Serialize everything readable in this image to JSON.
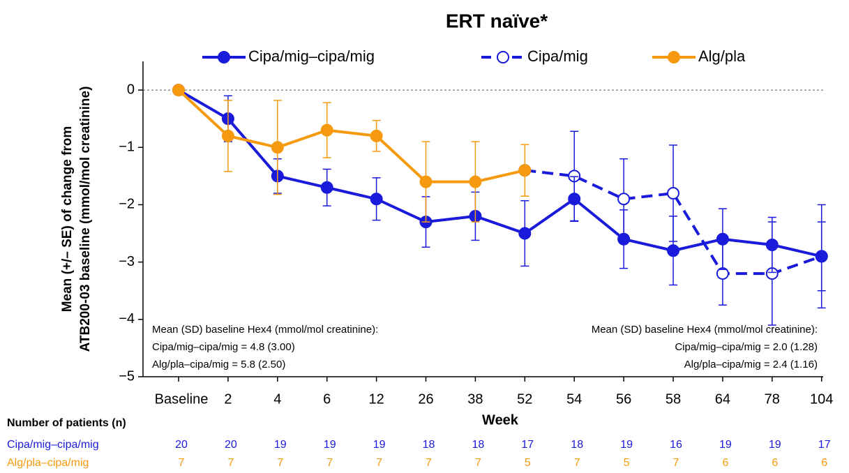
{
  "chart_data": {
    "type": "line",
    "title": "ERT naïve*",
    "ylabel": [
      "Mean (+/– SE) of change from",
      "ATB200-03 baseline (mmol/mol creatinine)"
    ],
    "xlabel": "Week",
    "categories": [
      "Baseline",
      "2",
      "4",
      "6",
      "12",
      "26",
      "38",
      "52",
      "54",
      "56",
      "58",
      "64",
      "78",
      "104"
    ],
    "ylim": [
      -5,
      0.5
    ],
    "yticks": [
      {
        "value": 0,
        "label": "0"
      },
      {
        "value": -1,
        "label": "−1"
      },
      {
        "value": -2,
        "label": "−2"
      },
      {
        "value": -3,
        "label": "−3"
      },
      {
        "value": -4,
        "label": "−4"
      },
      {
        "value": -5,
        "label": "−5"
      }
    ],
    "reference_line": 0,
    "series": [
      {
        "name": "Cipa/mig–cipa/mig",
        "color": "#1a1adb",
        "dashed": false,
        "filled": true,
        "values": [
          0,
          -0.5,
          -1.5,
          -1.7,
          -1.9,
          -2.3,
          -2.2,
          -2.5,
          -1.9,
          -2.6,
          -2.8,
          -2.6,
          -2.7,
          -2.9
        ],
        "errors": [
          0,
          0.4,
          0.3,
          0.32,
          0.37,
          0.44,
          0.42,
          0.57,
          0.39,
          0.51,
          0.6,
          0.53,
          0.48,
          0.6
        ]
      },
      {
        "name": "Cipa/mig",
        "color": "#1a1adb",
        "dashed": true,
        "filled": false,
        "values": [
          null,
          null,
          null,
          null,
          null,
          null,
          null,
          -1.4,
          -1.5,
          -1.9,
          -1.8,
          -3.2,
          -3.2,
          -2.9
        ],
        "errors": [
          null,
          null,
          null,
          null,
          null,
          null,
          null,
          null,
          0.78,
          0.7,
          0.84,
          0.55,
          0.9,
          0.9
        ]
      },
      {
        "name": "Alg/pla",
        "color": "#f59a0f",
        "dashed": false,
        "filled": true,
        "values": [
          0,
          -0.8,
          -1.0,
          -0.7,
          -0.8,
          -1.6,
          -1.6,
          -1.4,
          null,
          null,
          null,
          null,
          null,
          null
        ],
        "errors": [
          0,
          0.62,
          0.82,
          0.48,
          0.27,
          0.7,
          0.7,
          0.45,
          null,
          null,
          null,
          null,
          null,
          null
        ]
      }
    ],
    "annotations": [
      {
        "align": "left",
        "lines": [
          "Mean (SD) baseline Hex4 (mmol/mol creatinine):",
          "Cipa/mig–cipa/mig = 4.8 (3.00)",
          "Alg/pla–cipa/mig = 5.8 (2.50)"
        ]
      },
      {
        "align": "right",
        "lines": [
          "Mean (SD) baseline Hex4 (mmol/mol creatinine):",
          "Cipa/mig–cipa/mig = 2.0 (1.28)",
          "Alg/pla–cipa/mig = 2.4 (1.16)"
        ]
      }
    ],
    "patients": {
      "title": "Number of patients (n)",
      "rows": [
        {
          "name": "Cipa/mig–cipa/mig",
          "color": "#1a1adb",
          "values": [
            20,
            20,
            19,
            19,
            19,
            18,
            18,
            17,
            18,
            19,
            16,
            19,
            19,
            17
          ]
        },
        {
          "name": "Alg/pla–cipa/mig",
          "color": "#f59a0f",
          "values": [
            7,
            7,
            7,
            7,
            7,
            7,
            7,
            5,
            7,
            5,
            7,
            6,
            6,
            6
          ]
        }
      ]
    }
  }
}
